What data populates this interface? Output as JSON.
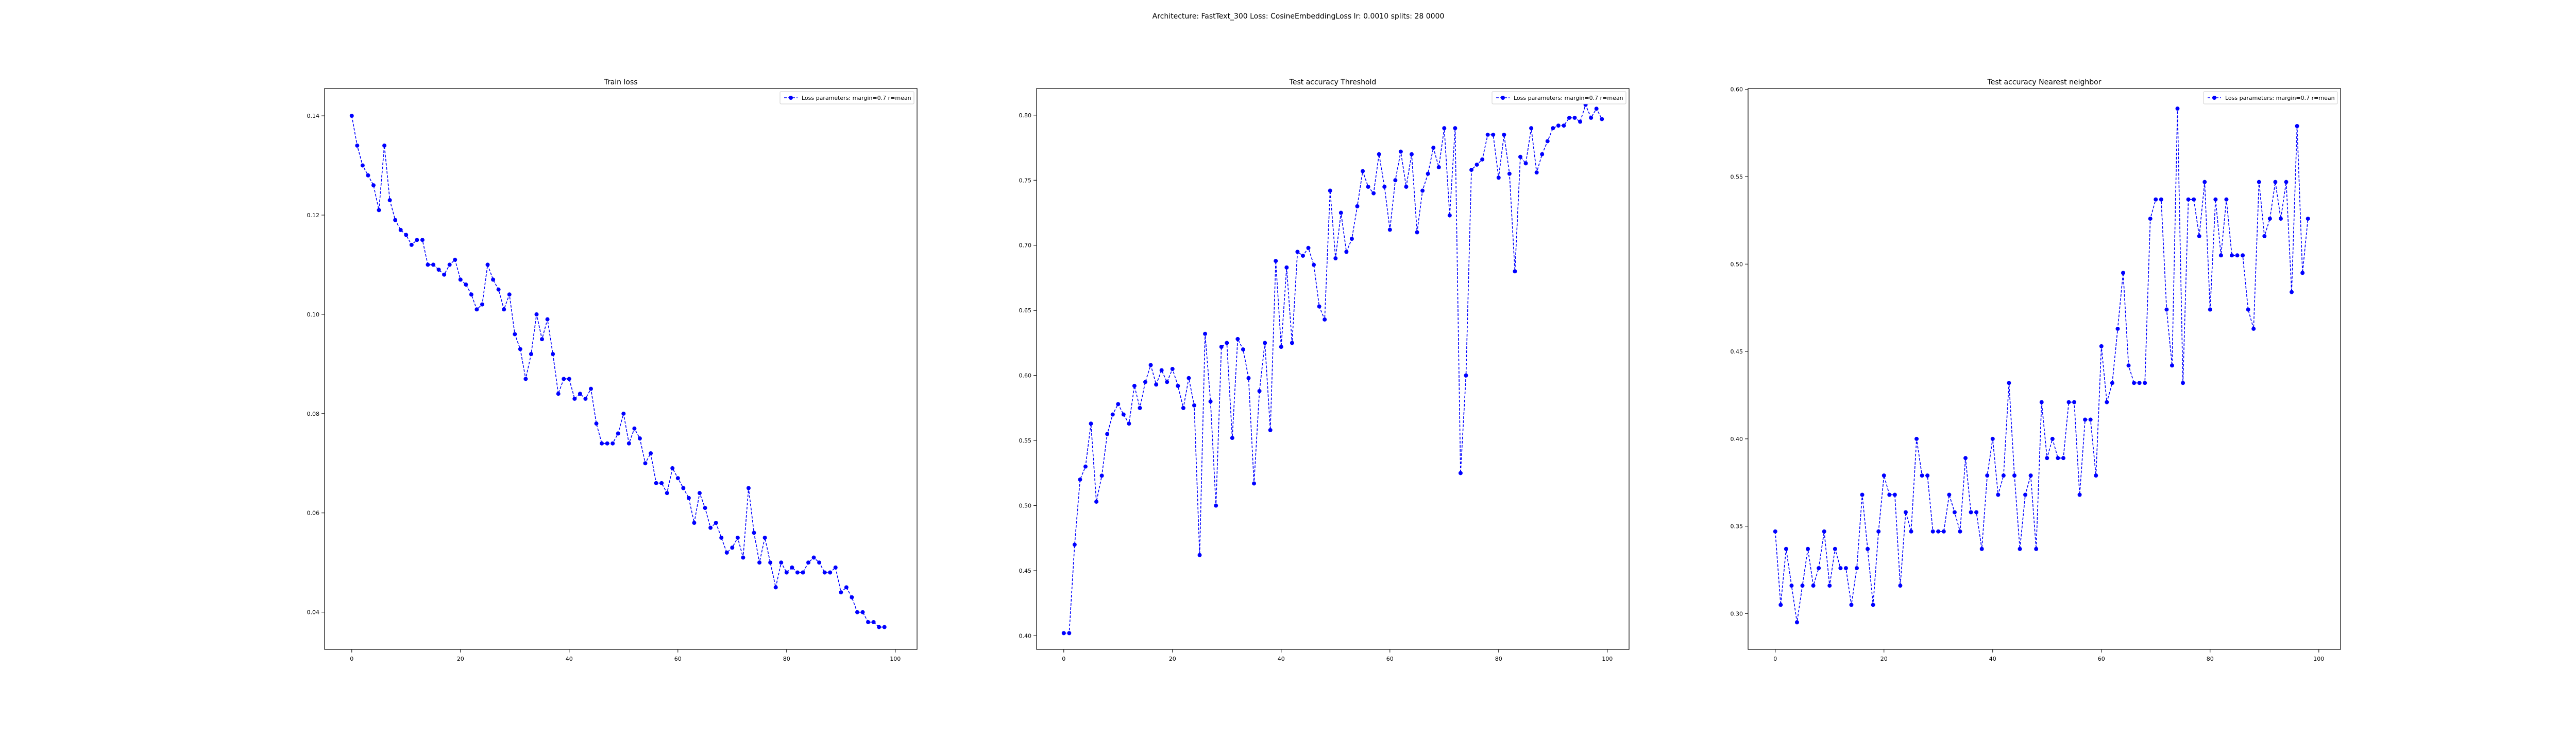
{
  "figure": {
    "suptitle": "Architecture: FastText_300 Loss: CosineEmbeddingLoss lr: 0.0010 splits: 28 0000"
  },
  "style": {
    "line_color": "#0000ff",
    "axis_color": "#000000"
  },
  "chart_data": [
    {
      "type": "line",
      "title": "Train loss",
      "xlabel": "",
      "ylabel": "",
      "legend": {
        "label": "Loss parameters: margin=0.7 r=mean",
        "placement": "upper-right"
      },
      "xlim": [
        -5,
        104
      ],
      "ylim": [
        0.0325,
        0.1455
      ],
      "xticks": [
        0,
        20,
        40,
        60,
        80,
        100
      ],
      "yticks": [
        0.04,
        0.06,
        0.08,
        0.1,
        0.12,
        0.14
      ],
      "ytick_labels": [
        "0.04",
        "0.06",
        "0.08",
        "0.10",
        "0.12",
        "0.14"
      ],
      "series": [
        {
          "values": [
            0.14,
            0.134,
            0.13,
            0.128,
            0.126,
            0.121,
            0.134,
            0.123,
            0.119,
            0.117,
            0.116,
            0.114,
            0.115,
            0.115,
            0.11,
            0.11,
            0.109,
            0.108,
            0.11,
            0.111,
            0.107,
            0.106,
            0.104,
            0.101,
            0.102,
            0.11,
            0.107,
            0.105,
            0.101,
            0.104,
            0.096,
            0.093,
            0.087,
            0.092,
            0.1,
            0.095,
            0.099,
            0.092,
            0.084,
            0.087,
            0.087,
            0.083,
            0.084,
            0.083,
            0.085,
            0.078,
            0.074,
            0.074,
            0.074,
            0.076,
            0.08,
            0.074,
            0.077,
            0.075,
            0.07,
            0.072,
            0.066,
            0.066,
            0.064,
            0.069,
            0.067,
            0.065,
            0.063,
            0.058,
            0.064,
            0.061,
            0.057,
            0.058,
            0.055,
            0.052,
            0.053,
            0.055,
            0.051,
            0.065,
            0.056,
            0.05,
            0.055,
            0.05,
            0.045,
            0.05,
            0.048,
            0.049,
            0.048,
            0.048,
            0.05,
            0.051,
            0.05,
            0.048,
            0.048,
            0.049,
            0.044,
            0.045,
            0.043,
            0.04,
            0.04,
            0.038,
            0.038,
            0.037,
            0.037
          ]
        }
      ]
    },
    {
      "type": "line",
      "title": "Test accuracy Threshold",
      "xlabel": "",
      "ylabel": "",
      "legend": {
        "label": "Loss parameters: margin=0.7 r=mean",
        "placement": "upper-right"
      },
      "xlim": [
        -5,
        104
      ],
      "ylim": [
        0.3895,
        0.8205
      ],
      "xticks": [
        0,
        20,
        40,
        60,
        80,
        100
      ],
      "yticks": [
        0.4,
        0.45,
        0.5,
        0.55,
        0.6,
        0.65,
        0.7,
        0.75,
        0.8
      ],
      "ytick_labels": [
        "0.40",
        "0.45",
        "0.50",
        "0.55",
        "0.60",
        "0.65",
        "0.70",
        "0.75",
        "0.80"
      ],
      "series": [
        {
          "values": [
            0.402,
            0.402,
            0.47,
            0.52,
            0.53,
            0.563,
            0.503,
            0.523,
            0.555,
            0.57,
            0.578,
            0.57,
            0.563,
            0.592,
            0.575,
            0.595,
            0.608,
            0.593,
            0.604,
            0.595,
            0.605,
            0.592,
            0.575,
            0.598,
            0.577,
            0.462,
            0.632,
            0.58,
            0.5,
            0.622,
            0.625,
            0.552,
            0.628,
            0.62,
            0.598,
            0.517,
            0.588,
            0.625,
            0.558,
            0.688,
            0.622,
            0.683,
            0.625,
            0.695,
            0.692,
            0.698,
            0.685,
            0.653,
            0.643,
            0.742,
            0.69,
            0.725,
            0.695,
            0.705,
            0.73,
            0.757,
            0.745,
            0.74,
            0.77,
            0.745,
            0.712,
            0.75,
            0.772,
            0.745,
            0.77,
            0.71,
            0.742,
            0.755,
            0.775,
            0.76,
            0.79,
            0.723,
            0.79,
            0.525,
            0.6,
            0.758,
            0.762,
            0.766,
            0.785,
            0.785,
            0.752,
            0.785,
            0.755,
            0.68,
            0.768,
            0.763,
            0.79,
            0.756,
            0.77,
            0.78,
            0.79,
            0.792,
            0.792,
            0.798,
            0.798,
            0.795,
            0.808,
            0.798,
            0.805,
            0.797
          ]
        }
      ]
    },
    {
      "type": "line",
      "title": "Test accuracy Nearest neighbor",
      "xlabel": "",
      "ylabel": "",
      "legend": {
        "label": "Loss parameters: margin=0.7 r=mean",
        "placement": "upper-right"
      },
      "xlim": [
        -5,
        104
      ],
      "ylim": [
        0.2795,
        0.6005
      ],
      "xticks": [
        0,
        20,
        40,
        60,
        80,
        100
      ],
      "yticks": [
        0.3,
        0.35,
        0.4,
        0.45,
        0.5,
        0.55,
        0.6
      ],
      "ytick_labels": [
        "0.30",
        "0.35",
        "0.40",
        "0.45",
        "0.50",
        "0.55",
        "0.60"
      ],
      "series": [
        {
          "values": [
            0.347,
            0.305,
            0.337,
            0.316,
            0.295,
            0.316,
            0.337,
            0.316,
            0.326,
            0.347,
            0.316,
            0.337,
            0.326,
            0.326,
            0.305,
            0.326,
            0.368,
            0.337,
            0.305,
            0.347,
            0.379,
            0.368,
            0.368,
            0.316,
            0.358,
            0.347,
            0.4,
            0.379,
            0.379,
            0.347,
            0.347,
            0.347,
            0.368,
            0.358,
            0.347,
            0.389,
            0.358,
            0.358,
            0.337,
            0.379,
            0.4,
            0.368,
            0.379,
            0.432,
            0.379,
            0.337,
            0.368,
            0.379,
            0.337,
            0.421,
            0.389,
            0.4,
            0.389,
            0.389,
            0.421,
            0.421,
            0.368,
            0.411,
            0.411,
            0.379,
            0.453,
            0.421,
            0.432,
            0.463,
            0.495,
            0.442,
            0.432,
            0.432,
            0.432,
            0.526,
            0.537,
            0.537,
            0.474,
            0.442,
            0.589,
            0.432,
            0.537,
            0.537,
            0.516,
            0.547,
            0.474,
            0.537,
            0.505,
            0.537,
            0.505,
            0.505,
            0.505,
            0.474,
            0.463,
            0.547,
            0.516,
            0.526,
            0.547,
            0.526,
            0.547,
            0.484,
            0.579,
            0.495,
            0.526
          ]
        }
      ]
    }
  ]
}
